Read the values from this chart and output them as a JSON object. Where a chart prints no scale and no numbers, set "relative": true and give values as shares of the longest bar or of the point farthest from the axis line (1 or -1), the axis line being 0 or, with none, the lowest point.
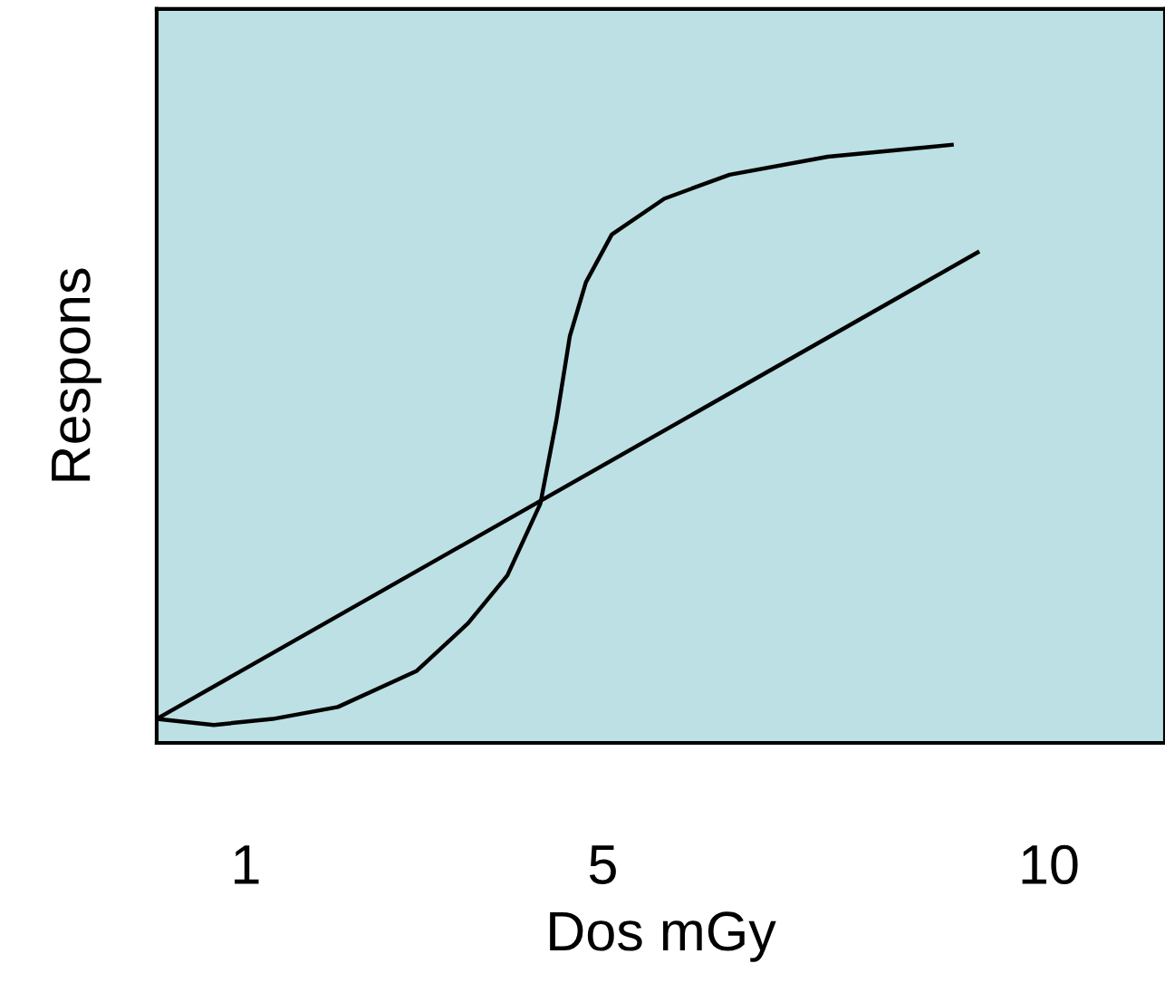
{
  "chart_data": {
    "type": "line",
    "relative": true,
    "xlabel": "Dos mGy",
    "ylabel": "Respons",
    "xlim": [
      0,
      11.3
    ],
    "xticks": [
      1,
      5,
      10
    ],
    "grid": false,
    "legend": false,
    "marker": "none",
    "line_style": "solid",
    "series": [
      {
        "color": "#000000",
        "x": [
          0,
          0.64,
          1.3,
          2.03,
          2.91,
          3.49,
          3.93,
          4.3,
          4.48,
          4.63,
          4.81,
          5.1,
          5.69,
          6.42,
          7.52,
          8.91
        ],
        "values": [
          0.04,
          0.03,
          0.04,
          0.06,
          0.12,
          0.2,
          0.28,
          0.4,
          0.54,
          0.68,
          0.77,
          0.85,
          0.91,
          0.95,
          0.98,
          1.0
        ]
      },
      {
        "color": "#000000",
        "x": [
          0,
          9.2
        ],
        "values": [
          0.04,
          0.82
        ]
      }
    ]
  }
}
